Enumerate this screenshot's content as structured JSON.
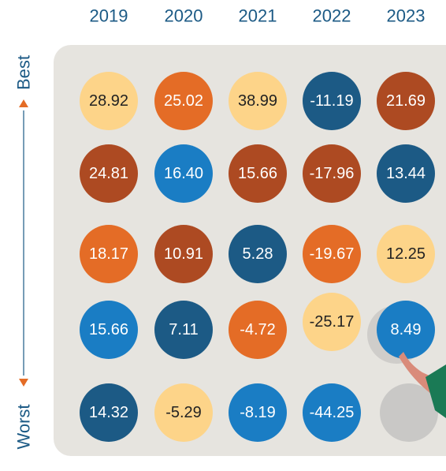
{
  "chart_data": {
    "type": "ranked-grid",
    "categories": [
      "2019",
      "2020",
      "2021",
      "2022",
      "2023"
    ],
    "top_label": "Best",
    "bottom_label": "Worst",
    "columns": [
      {
        "values": [
          28.92,
          24.81,
          18.17,
          15.66,
          14.32
        ],
        "value_labels": [
          "28.92",
          "24.81",
          "18.17",
          "15.66",
          "14.32"
        ],
        "colors": [
          "#fdd489",
          "#ad4a22",
          "#e46c26",
          "#1a7dc4",
          "#1c5a85"
        ]
      },
      {
        "values": [
          25.02,
          16.4,
          10.91,
          7.11,
          -5.29
        ],
        "value_labels": [
          "25.02",
          "16.40",
          "10.91",
          "7.11",
          "-5.29"
        ],
        "colors": [
          "#e46c26",
          "#1a7dc4",
          "#ad4a22",
          "#1c5a85",
          "#fdd489"
        ]
      },
      {
        "values": [
          38.99,
          15.66,
          5.28,
          -4.72,
          -8.19
        ],
        "value_labels": [
          "38.99",
          "15.66",
          "5.28",
          "-4.72",
          "-8.19"
        ],
        "colors": [
          "#fdd489",
          "#ad4a22",
          "#1c5a85",
          "#e46c26",
          "#1a7dc4"
        ]
      },
      {
        "values": [
          -11.19,
          -17.96,
          -19.67,
          -25.17,
          -44.25
        ],
        "value_labels": [
          "-11.19",
          "-17.96",
          "-19.67",
          "-25.17",
          "-44.25"
        ],
        "colors": [
          "#1c5a85",
          "#ad4a22",
          "#e46c26",
          "#fdd489",
          "#1a7dc4"
        ]
      },
      {
        "values": [
          21.69,
          13.44,
          12.25,
          8.49,
          null
        ],
        "value_labels": [
          "21.69",
          "13.44",
          "12.25",
          "8.49",
          null
        ],
        "colors": [
          "#ad4a22",
          "#1c5a85",
          "#fdd489",
          "#1a7dc4",
          null
        ]
      }
    ]
  }
}
